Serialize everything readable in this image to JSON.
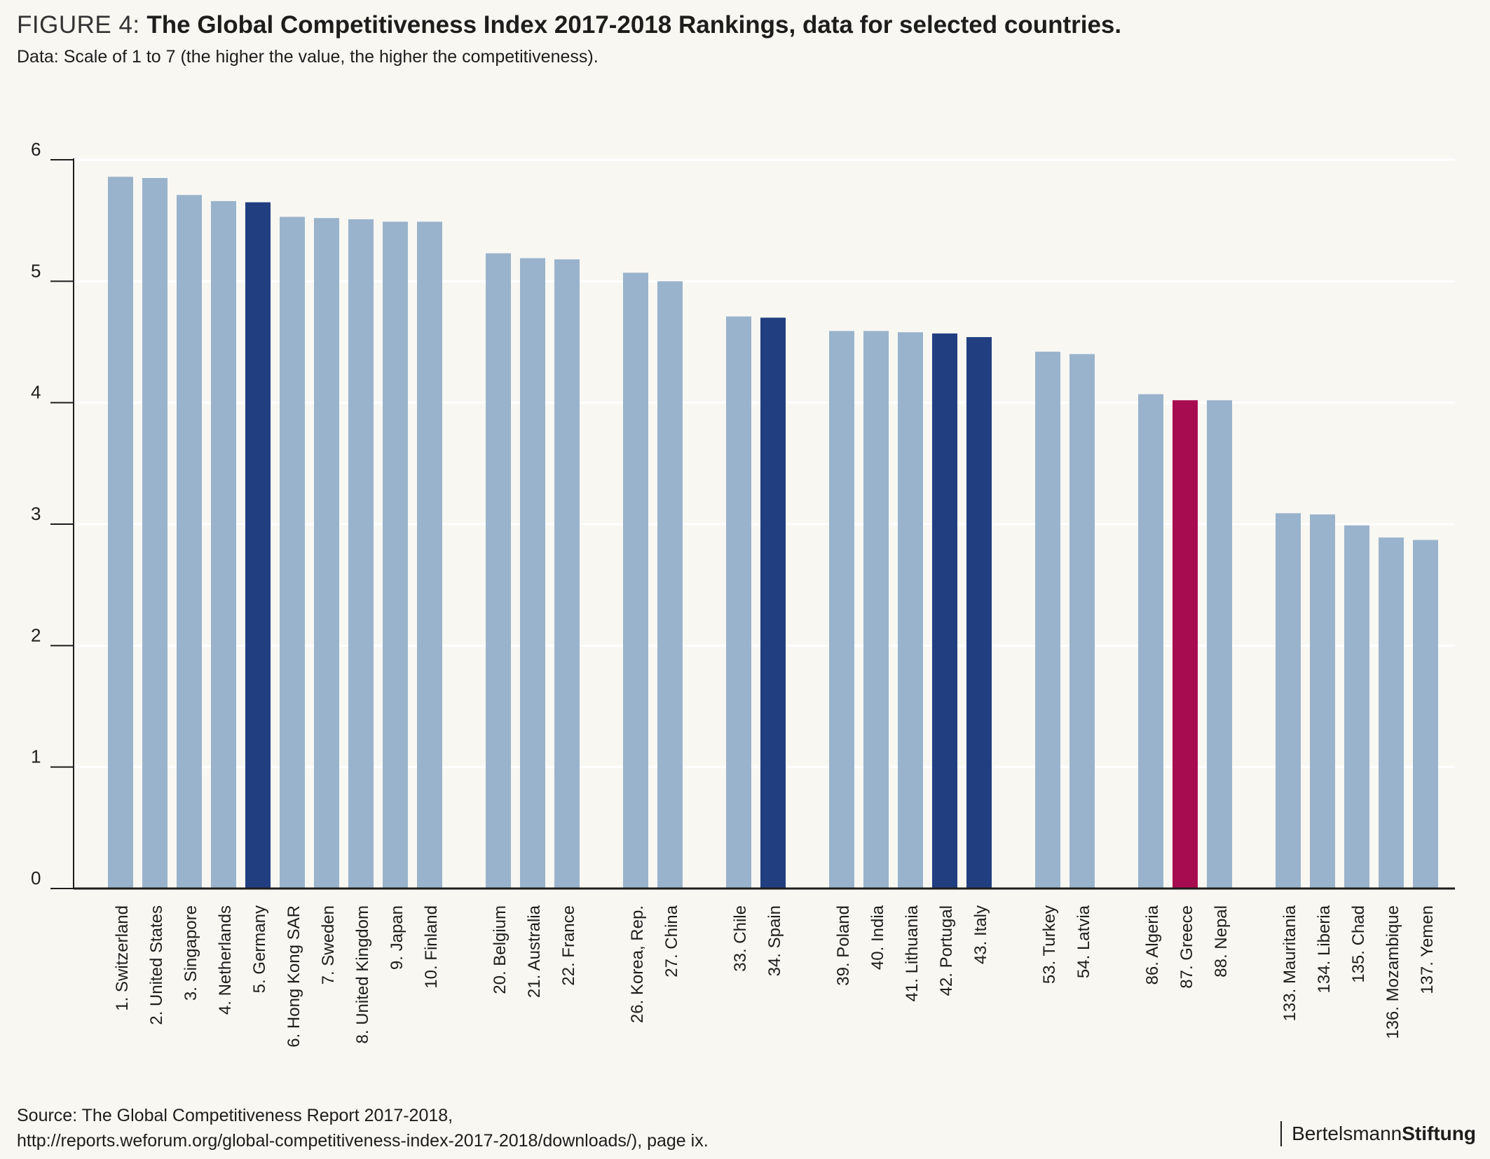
{
  "title": {
    "prefix": "FIGURE 4:",
    "main": "The Global Competitiveness Index 2017-2018 Rankings, data for selected countries."
  },
  "subtitle": "Data: Scale of 1 to 7 (the higher the value, the higher the competitiveness).",
  "source": {
    "line1": "Source: The Global Competitiveness Report 2017-2018,",
    "line2": "http://reports.weforum.org/global-competitiveness-index-2017-2018/downloads/), page ix."
  },
  "brand": {
    "part1": "Bertelsmann",
    "part2": "Stiftung"
  },
  "colors": {
    "default": "#99b3cc",
    "highlight": "#213f80",
    "greece": "#a80c50",
    "grid": "#ffffff",
    "axis": "#1d1d1b"
  },
  "chart_data": {
    "type": "bar",
    "ylim": [
      0,
      6
    ],
    "yticks": [
      0,
      1,
      2,
      3,
      4,
      5,
      6
    ],
    "grid": true,
    "groups": [
      [
        "1. Switzerland",
        "2. United States",
        "3. Singapore",
        "4. Netherlands",
        "5. Germany",
        "6. Hong Kong SAR",
        "7. Sweden",
        "8. United Kingdom",
        "9. Japan",
        "10. Finland"
      ],
      [
        "20. Belgium",
        "21. Australia",
        "22. France"
      ],
      [
        "26. Korea, Rep.",
        "27. China"
      ],
      [
        "33. Chile",
        "34. Spain"
      ],
      [
        "39. Poland",
        "40. India",
        "41. Lithuania",
        "42. Portugal",
        "43. Italy"
      ],
      [
        "53. Turkey",
        "54. Latvia"
      ],
      [
        "86. Algeria",
        "87. Greece",
        "88. Nepal"
      ],
      [
        "133. Mauritania",
        "134. Liberia",
        "135. Chad",
        "136. Mozambique",
        "137. Yemen"
      ]
    ],
    "values": {
      "1. Switzerland": 5.86,
      "2. United States": 5.85,
      "3. Singapore": 5.71,
      "4. Netherlands": 5.66,
      "5. Germany": 5.65,
      "6. Hong Kong SAR": 5.53,
      "7. Sweden": 5.52,
      "8. United Kingdom": 5.51,
      "9. Japan": 5.49,
      "10. Finland": 5.49,
      "20. Belgium": 5.23,
      "21. Australia": 5.19,
      "22. France": 5.18,
      "26. Korea, Rep.": 5.07,
      "27. China": 5.0,
      "33. Chile": 4.71,
      "34. Spain": 4.7,
      "39. Poland": 4.59,
      "40. India": 4.59,
      "41. Lithuania": 4.58,
      "42. Portugal": 4.57,
      "43. Italy": 4.54,
      "53. Turkey": 4.42,
      "54. Latvia": 4.4,
      "86. Algeria": 4.07,
      "87. Greece": 4.02,
      "88. Nepal": 4.02,
      "133. Mauritania": 3.09,
      "134. Liberia": 3.08,
      "135. Chad": 2.99,
      "136. Mozambique": 2.89,
      "137. Yemen": 2.87
    },
    "highlight": [
      "5. Germany",
      "34. Spain",
      "42. Portugal",
      "43. Italy"
    ],
    "accent": [
      "87. Greece"
    ]
  }
}
